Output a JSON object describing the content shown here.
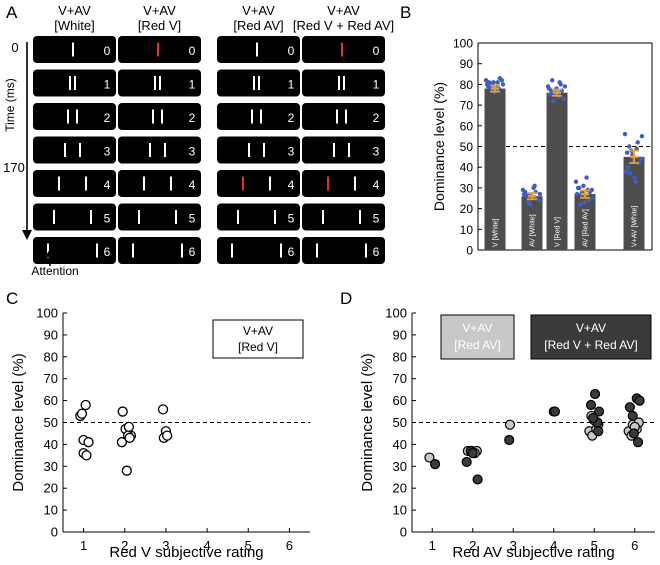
{
  "panelA": {
    "letter": "A",
    "columns": [
      {
        "top": "V+AV",
        "bottom": "[White]"
      },
      {
        "top": "V+AV",
        "bottom": "[Red V]"
      },
      {
        "top": "V+AV",
        "bottom": "[Red AV]"
      },
      {
        "top": "V+AV",
        "bottom": "[Red V + Red AV]"
      }
    ],
    "frames": [
      "0",
      "1",
      "2",
      "3",
      "4",
      "5",
      "6"
    ],
    "time_labels": [
      "0",
      "170"
    ],
    "time_axis_label": "Time (ms)",
    "attention_label": "Attention",
    "colors": {
      "frame": "#000000",
      "bar": "#ffffff",
      "red": "#e0302a"
    }
  },
  "panelB": {
    "letter": "B",
    "chart_data": {
      "type": "bar",
      "ylabel": "Dominance level (%)",
      "ylim": [
        0,
        100
      ],
      "yticks": [
        "0",
        "10",
        "20",
        "30",
        "40",
        "50",
        "60",
        "70",
        "80",
        "90",
        "100"
      ],
      "categories": [
        "V [White]",
        "AV [White]",
        "V [Red V]",
        "AV [Red AV]",
        "V+AV [White]"
      ],
      "values": [
        78,
        26,
        76,
        27,
        45
      ],
      "errors": [
        1.5,
        1.5,
        1.5,
        1.8,
        3
      ],
      "reference_line": 50,
      "points": [
        [
          82,
          81,
          80,
          79,
          78,
          82,
          80,
          79,
          81,
          77,
          83,
          80,
          79,
          78,
          76,
          81
        ],
        [
          29,
          27,
          26,
          25,
          28,
          24,
          27,
          26,
          22,
          30,
          25,
          27,
          28,
          23,
          26,
          31
        ],
        [
          79,
          77,
          75,
          76,
          80,
          73,
          78,
          82,
          76,
          74,
          77,
          79,
          75,
          72,
          78,
          81
        ],
        [
          33,
          30,
          28,
          26,
          24,
          29,
          27,
          22,
          31,
          35,
          28,
          25,
          30,
          27,
          23,
          29
        ],
        [
          56,
          40,
          48,
          35,
          52,
          44,
          38,
          50,
          46,
          33,
          42,
          55,
          47,
          37,
          43,
          49
        ]
      ],
      "colors": {
        "bar": "#4d4d4d",
        "point": "#3d5fc4",
        "error": "#f0a020"
      }
    }
  },
  "panelC": {
    "letter": "C",
    "chart_data": {
      "type": "scatter",
      "xlabel": "Red V subjective rating",
      "ylabel": "Dominance level (%)",
      "xlim": [
        0.5,
        6.5
      ],
      "ylim": [
        0,
        100
      ],
      "xticks": [
        "1",
        "2",
        "3",
        "4",
        "5",
        "6"
      ],
      "yticks": [
        "0",
        "10",
        "20",
        "30",
        "40",
        "50",
        "60",
        "70",
        "80",
        "90",
        "100"
      ],
      "reference_line": 50,
      "legend": {
        "line1": "V+AV",
        "line2": "[Red V]"
      },
      "x": [
        0.92,
        0.96,
        1.05,
        1.0,
        1.12,
        1.0,
        1.07,
        1.95,
        2.02,
        2.1,
        2.15,
        1.93,
        2.08,
        2.12,
        2.05,
        2.93,
        3.0,
        2.95,
        3.03
      ],
      "y": [
        53,
        54,
        58,
        42,
        41,
        36,
        35,
        55,
        47,
        48,
        44,
        41,
        44,
        43,
        28,
        56,
        46,
        43,
        44
      ],
      "colors": {
        "fill": "#ffffff",
        "stroke": "#000000"
      }
    }
  },
  "panelD": {
    "letter": "D",
    "chart_data": {
      "type": "scatter",
      "xlabel": "Red AV subjective rating",
      "ylabel": "Dominance level (%)",
      "xlim": [
        0.5,
        6.5
      ],
      "ylim": [
        0,
        100
      ],
      "xticks": [
        "1",
        "2",
        "3",
        "4",
        "5",
        "6"
      ],
      "yticks": [
        "0",
        "10",
        "20",
        "30",
        "40",
        "50",
        "60",
        "70",
        "80",
        "90",
        "100"
      ],
      "reference_line": 50,
      "legend": [
        {
          "line1": "V+AV",
          "line2": "[Red AV]"
        },
        {
          "line1": "V+AV",
          "line2": "[Red V + Red AV]"
        }
      ],
      "series": [
        {
          "x": [
            0.93,
            1.88,
            1.98,
            2.1,
            2.05,
            2.92,
            4.0,
            4.88,
            4.95,
            5.05,
            5.0,
            5.1,
            4.93,
            5.85,
            5.95,
            6.05,
            6.1,
            6.0,
            5.92
          ],
          "y": [
            34,
            37,
            37,
            37,
            36,
            49,
            55,
            46,
            44,
            47,
            51,
            49,
            53,
            46,
            49,
            47,
            50,
            48,
            44
          ],
          "colors": {
            "fill": "#c8c8c8",
            "stroke": "#000000"
          }
        },
        {
          "x": [
            1.07,
            1.85,
            1.95,
            2.0,
            2.12,
            2.9,
            4.03,
            4.92,
            5.02,
            5.08,
            5.12,
            4.97,
            5.1,
            5.88,
            5.95,
            6.05,
            6.12,
            5.98,
            6.08
          ],
          "y": [
            31,
            32,
            37,
            36,
            24,
            42,
            55,
            58,
            63,
            50,
            55,
            52,
            46,
            57,
            53,
            61,
            60,
            45,
            41
          ],
          "colors": {
            "fill": "#3a3a3a",
            "stroke": "#000000"
          }
        }
      ]
    }
  }
}
